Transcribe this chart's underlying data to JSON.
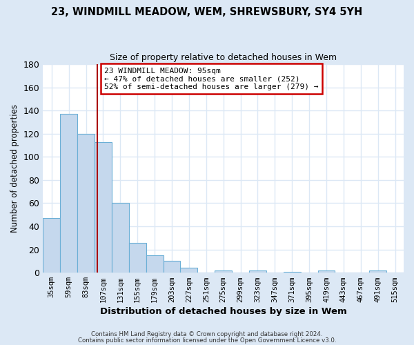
{
  "title1": "23, WINDMILL MEADOW, WEM, SHREWSBURY, SY4 5YH",
  "title2": "Size of property relative to detached houses in Wem",
  "xlabel": "Distribution of detached houses by size in Wem",
  "ylabel": "Number of detached properties",
  "bin_labels": [
    "35sqm",
    "59sqm",
    "83sqm",
    "107sqm",
    "131sqm",
    "155sqm",
    "179sqm",
    "203sqm",
    "227sqm",
    "251sqm",
    "275sqm",
    "299sqm",
    "323sqm",
    "347sqm",
    "371sqm",
    "395sqm",
    "419sqm",
    "443sqm",
    "467sqm",
    "491sqm",
    "515sqm"
  ],
  "bar_heights": [
    47,
    137,
    120,
    113,
    60,
    26,
    15,
    10,
    4,
    0,
    2,
    0,
    2,
    0,
    1,
    0,
    2,
    0,
    0,
    2,
    0
  ],
  "bar_color": "#c5d8ed",
  "bar_edge_color": "#6aafd6",
  "ylim": [
    0,
    180
  ],
  "yticks": [
    0,
    20,
    40,
    60,
    80,
    100,
    120,
    140,
    160,
    180
  ],
  "vline_x": 2.67,
  "vline_color": "#aa0000",
  "annotation_text": "23 WINDMILL MEADOW: 95sqm\n← 47% of detached houses are smaller (252)\n52% of semi-detached houses are larger (279) →",
  "annotation_box_color": "#ffffff",
  "annotation_box_edge": "#cc0000",
  "footer1": "Contains HM Land Registry data © Crown copyright and database right 2024.",
  "footer2": "Contains public sector information licensed under the Open Government Licence v3.0.",
  "fig_background_color": "#dce8f5",
  "plot_background_color": "#ffffff",
  "grid_color": "#dce8f5"
}
